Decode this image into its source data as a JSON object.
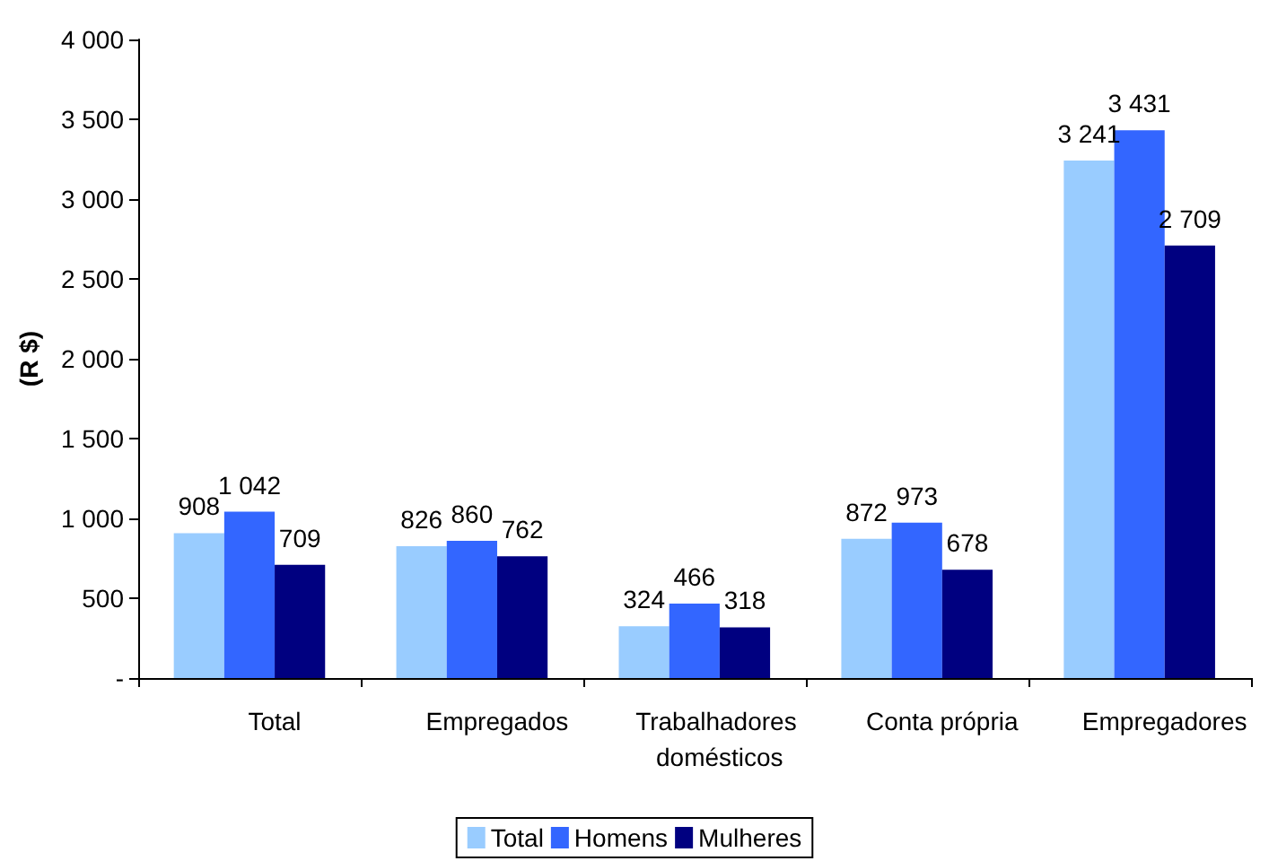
{
  "chart_data": {
    "type": "bar",
    "ylabel": "(R $)",
    "categories": [
      "Total",
      "Empregados",
      "Trabalhadores domésticos",
      "Conta própria",
      "Empregadores"
    ],
    "series": [
      {
        "name": "Total",
        "color": "#99ccff",
        "values": [
          908,
          826,
          324,
          872,
          3241
        ],
        "value_labels": [
          "908",
          "826",
          "324",
          "872",
          "3 241"
        ]
      },
      {
        "name": "Homens",
        "color": "#3366ff",
        "values": [
          1042,
          860,
          466,
          973,
          3431
        ],
        "value_labels": [
          "1 042",
          "860",
          "466",
          "973",
          "3 431"
        ]
      },
      {
        "name": "Mulheres",
        "color": "#000080",
        "values": [
          709,
          762,
          318,
          678,
          2709
        ],
        "value_labels": [
          "709",
          "762",
          "318",
          "678",
          "2 709"
        ]
      }
    ],
    "ylim": [
      0,
      4000
    ],
    "yticks": [
      {
        "value": 0,
        "label": "-"
      },
      500,
      {
        "value": 1000,
        "label": "1 000"
      },
      {
        "value": 1500,
        "label": "1 500"
      },
      {
        "value": 2000,
        "label": "2 000"
      },
      {
        "value": 2500,
        "label": "2 500"
      },
      {
        "value": 3000,
        "label": "3 000"
      },
      {
        "value": 3500,
        "label": "3 500"
      },
      {
        "value": 4000,
        "label": "4 000"
      }
    ],
    "grid": false,
    "legend": "bottom"
  }
}
